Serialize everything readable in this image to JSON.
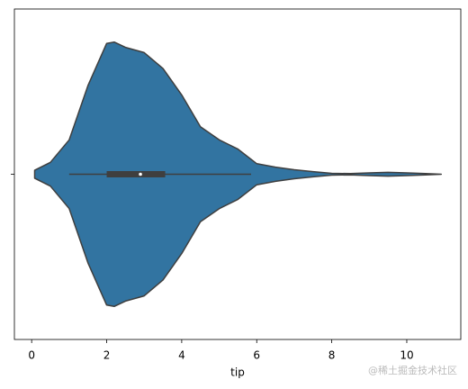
{
  "chart_data": {
    "type": "violin",
    "xlabel": "tip",
    "categories": [
      null
    ],
    "violin": {
      "grid": [
        0.08,
        0.5,
        1.0,
        1.5,
        2.0,
        2.2,
        2.5,
        3.0,
        3.5,
        4.0,
        4.5,
        5.0,
        5.5,
        6.0,
        6.5,
        7.0,
        7.5,
        8.0,
        8.5,
        9.0,
        9.5,
        10.0,
        10.5,
        10.92
      ],
      "density": [
        0.03,
        0.09,
        0.26,
        0.67,
        0.99,
        1.0,
        0.96,
        0.92,
        0.8,
        0.6,
        0.36,
        0.26,
        0.19,
        0.08,
        0.054,
        0.034,
        0.02,
        0.007,
        0.005,
        0.01,
        0.014,
        0.01,
        0.005,
        0
      ]
    },
    "box": {
      "whisker_low": 1.0,
      "q1": 2.0,
      "median": 2.9,
      "q3": 3.56,
      "whisker_high": 5.85
    },
    "color": "#3274a1",
    "edge_color": "#3f3f3f",
    "xlim": [
      -0.46,
      11.44
    ],
    "xticks": [
      0,
      2,
      4,
      6,
      8,
      10
    ]
  },
  "watermark": "@稀土掘金技术社区"
}
